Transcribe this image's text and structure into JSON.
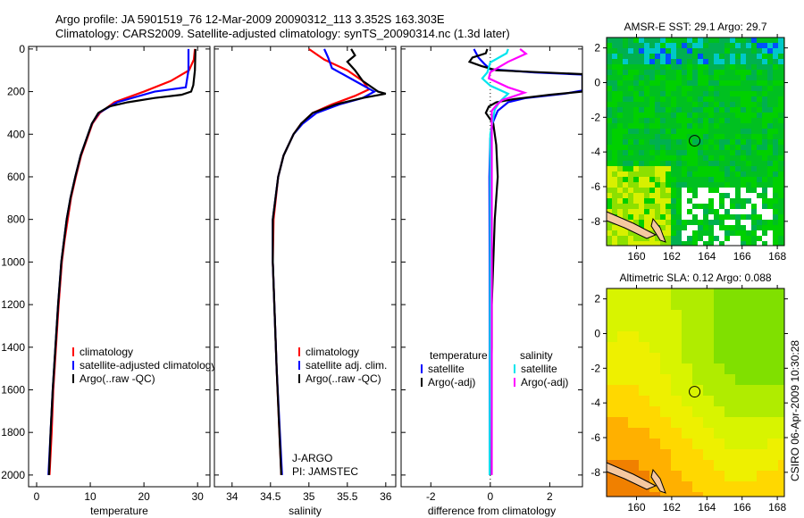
{
  "title_line1": "Argo profile: JA 5901519_76 12-Mar-2009 20090312_113 3.352S 163.303E",
  "title_line2": "Climatology: CARS2009. Satellite-adjusted climatology: synTS_20090314.nc (1.3d later)",
  "credit": "CSIRO 06-Apr-2009 10:30:28",
  "float_info": [
    "J-ARGO",
    "PI: JAMSTEC"
  ],
  "colors": {
    "climatology": "#ff0000",
    "satellite": "#0000ff",
    "argo": "#000000",
    "sal_satellite": "#00e5ee",
    "sal_argo": "#ff00ff"
  },
  "chart_data": [
    {
      "type": "line",
      "id": "temperature",
      "xlabel": "temperature",
      "ylabel": "",
      "xlim": [
        -1.5,
        32.3
      ],
      "ylim": [
        2055,
        -12
      ],
      "xticks": [
        0,
        10,
        20,
        30
      ],
      "yticks": [
        0,
        200,
        400,
        600,
        800,
        1000,
        1200,
        1400,
        1600,
        1800,
        2000
      ],
      "legend": [
        "climatology",
        "satellite-adjusted climatology",
        "Argo(..raw -QC)"
      ],
      "series": [
        {
          "name": "climatology",
          "color": "#ff0000",
          "points": [
            [
              0,
              29.5
            ],
            [
              50,
              29.3
            ],
            [
              100,
              28.4
            ],
            [
              150,
              25
            ],
            [
              200,
              20
            ],
            [
              250,
              14.5
            ],
            [
              300,
              11.8
            ],
            [
              350,
              10.4
            ],
            [
              400,
              9.7
            ],
            [
              500,
              8.3
            ],
            [
              600,
              7.3
            ],
            [
              700,
              6.4
            ],
            [
              800,
              5.8
            ],
            [
              900,
              5.2
            ],
            [
              1000,
              4.7
            ],
            [
              1200,
              4.1
            ],
            [
              1400,
              3.6
            ],
            [
              1600,
              3.1
            ],
            [
              1800,
              2.8
            ],
            [
              2000,
              2.4
            ]
          ]
        },
        {
          "name": "satellite-adjusted climatology",
          "color": "#0000ff",
          "points": [
            [
              0,
              28.3
            ],
            [
              100,
              28.3
            ],
            [
              180,
              27.8
            ],
            [
              200,
              22
            ],
            [
              250,
              15
            ],
            [
              300,
              11.6
            ],
            [
              350,
              10.3
            ],
            [
              400,
              9.6
            ],
            [
              500,
              8.2
            ],
            [
              600,
              7.2
            ],
            [
              700,
              6.3
            ],
            [
              800,
              5.6
            ],
            [
              900,
              5.1
            ],
            [
              1000,
              4.6
            ],
            [
              1200,
              4.0
            ],
            [
              1400,
              3.5
            ],
            [
              1600,
              3.0
            ],
            [
              1800,
              2.6
            ],
            [
              2000,
              2.2
            ]
          ]
        },
        {
          "name": "Argo(..raw -QC)",
          "color": "#000000",
          "points": [
            [
              0,
              29.6
            ],
            [
              100,
              29.5
            ],
            [
              170,
              29.2
            ],
            [
              200,
              28.8
            ],
            [
              215,
              27
            ],
            [
              230,
              22
            ],
            [
              250,
              17
            ],
            [
              270,
              13.5
            ],
            [
              300,
              11.5
            ],
            [
              350,
              10.3
            ],
            [
              400,
              9.6
            ],
            [
              500,
              8.2
            ],
            [
              600,
              7.2
            ],
            [
              700,
              6.3
            ],
            [
              800,
              5.6
            ],
            [
              900,
              5.1
            ],
            [
              1000,
              4.6
            ],
            [
              1200,
              4.0
            ],
            [
              1400,
              3.5
            ],
            [
              1600,
              3.0
            ],
            [
              1800,
              2.6
            ],
            [
              2000,
              2.3
            ]
          ]
        }
      ]
    },
    {
      "type": "line",
      "id": "salinity",
      "xlabel": "salinity",
      "xlim": [
        33.77,
        36.13
      ],
      "ylim": [
        2055,
        -12
      ],
      "xticks": [
        34,
        34.5,
        35,
        35.5,
        36
      ],
      "legend": [
        "climatology",
        "satellite adj. clim.",
        "Argo(..raw -QC)"
      ],
      "series": [
        {
          "name": "climatology",
          "color": "#ff0000",
          "points": [
            [
              0,
              35.0
            ],
            [
              50,
              35.2
            ],
            [
              100,
              35.5
            ],
            [
              150,
              35.7
            ],
            [
              190,
              35.78
            ],
            [
              220,
              35.6
            ],
            [
              260,
              35.3
            ],
            [
              300,
              35.05
            ],
            [
              350,
              34.9
            ],
            [
              400,
              34.8
            ],
            [
              500,
              34.67
            ],
            [
              600,
              34.6
            ],
            [
              800,
              34.54
            ],
            [
              1000,
              34.53
            ],
            [
              1200,
              34.55
            ],
            [
              1500,
              34.58
            ],
            [
              2000,
              34.64
            ]
          ]
        },
        {
          "name": "satellite adj. clim.",
          "color": "#0000ff",
          "points": [
            [
              0,
              35.2
            ],
            [
              40,
              35.25
            ],
            [
              90,
              35.3
            ],
            [
              150,
              35.6
            ],
            [
              200,
              35.85
            ],
            [
              230,
              35.7
            ],
            [
              260,
              35.4
            ],
            [
              300,
              35.1
            ],
            [
              350,
              34.92
            ],
            [
              400,
              34.8
            ],
            [
              500,
              34.67
            ],
            [
              600,
              34.6
            ],
            [
              800,
              34.53
            ],
            [
              1000,
              34.53
            ],
            [
              1200,
              34.55
            ],
            [
              1500,
              34.58
            ],
            [
              2000,
              34.65
            ]
          ]
        },
        {
          "name": "Argo(..raw -QC)",
          "color": "#000000",
          "points": [
            [
              0,
              35.55
            ],
            [
              30,
              35.6
            ],
            [
              60,
              35.5
            ],
            [
              100,
              35.6
            ],
            [
              150,
              35.7
            ],
            [
              200,
              35.9
            ],
            [
              210,
              36.0
            ],
            [
              230,
              35.7
            ],
            [
              260,
              35.35
            ],
            [
              300,
              35.05
            ],
            [
              350,
              34.9
            ],
            [
              400,
              34.8
            ],
            [
              500,
              34.67
            ],
            [
              600,
              34.6
            ],
            [
              800,
              34.53
            ],
            [
              1000,
              34.53
            ],
            [
              1200,
              34.55
            ],
            [
              1500,
              34.58
            ],
            [
              2000,
              34.64
            ]
          ]
        }
      ]
    },
    {
      "type": "line",
      "id": "difference",
      "xlabel": "difference from climatology",
      "xlim": [
        -3.0,
        3.1
      ],
      "ylim": [
        2055,
        -12
      ],
      "xticks": [
        -2,
        0,
        2
      ],
      "legend_groups": [
        {
          "heading": "temperature",
          "items": [
            "satellite",
            "Argo(-adj)"
          ]
        },
        {
          "heading": "salinity",
          "items": [
            "satellite",
            "Argo(-adj)"
          ]
        }
      ],
      "series": [
        {
          "name": "temperature satellite",
          "color": "#0000ff",
          "points": [
            [
              0,
              -0.55
            ],
            [
              40,
              -0.4
            ],
            [
              70,
              -0.2
            ],
            [
              95,
              0
            ],
            [
              110,
              1.5
            ],
            [
              120,
              3.1
            ],
            [
              195,
              3.1
            ],
            [
              210,
              2.5
            ],
            [
              230,
              1.2
            ],
            [
              250,
              0.6
            ],
            [
              290,
              0.25
            ],
            [
              340,
              0.1
            ],
            [
              420,
              0
            ],
            [
              600,
              -0.03
            ],
            [
              1000,
              -0.02
            ],
            [
              2000,
              -0.02
            ]
          ]
        },
        {
          "name": "temperature Argo(-adj)",
          "color": "#000000",
          "points": [
            [
              0,
              -0.1
            ],
            [
              20,
              -0.15
            ],
            [
              40,
              -0.6
            ],
            [
              60,
              -0.7
            ],
            [
              80,
              -0.3
            ],
            [
              100,
              0.2
            ],
            [
              118,
              3.1
            ],
            [
              200,
              3.1
            ],
            [
              215,
              2.0
            ],
            [
              235,
              0.8
            ],
            [
              250,
              0.2
            ],
            [
              270,
              -0.05
            ],
            [
              300,
              -0.15
            ],
            [
              350,
              0.1
            ],
            [
              450,
              0.2
            ],
            [
              600,
              0.25
            ],
            [
              800,
              0.15
            ],
            [
              1000,
              0.1
            ],
            [
              1200,
              0.05
            ],
            [
              1400,
              0.05
            ],
            [
              2000,
              0
            ]
          ]
        },
        {
          "name": "salinity satellite",
          "color": "#00e5ee",
          "points": [
            [
              0,
              0.6
            ],
            [
              20,
              0.55
            ],
            [
              63,
              0
            ],
            [
              110,
              -0.1
            ],
            [
              138,
              -0.27
            ],
            [
              172,
              0
            ],
            [
              210,
              0.6
            ],
            [
              250,
              0.3
            ],
            [
              285,
              0.15
            ],
            [
              400,
              0
            ],
            [
              1000,
              0
            ],
            [
              2000,
              -0.02
            ]
          ]
        },
        {
          "name": "salinity Argo(-adj)",
          "color": "#ff00ff",
          "points": [
            [
              0,
              1.0
            ],
            [
              22,
              1.2
            ],
            [
              60,
              0.6
            ],
            [
              109,
              0
            ],
            [
              138,
              -0.05
            ],
            [
              180,
              0.6
            ],
            [
              205,
              1.15
            ],
            [
              240,
              0.4
            ],
            [
              265,
              0.2
            ],
            [
              290,
              0.05
            ],
            [
              500,
              0.05
            ],
            [
              1000,
              0.05
            ],
            [
              2000,
              0.05
            ]
          ]
        }
      ]
    },
    {
      "type": "heatmap",
      "id": "sst_map",
      "title": "AMSR-E SST: 29.1 Argo: 29.7",
      "xlim": [
        158.3,
        168.4
      ],
      "ylim": [
        -9.4,
        2.6
      ],
      "xticks": [
        160,
        162,
        164,
        166,
        168
      ],
      "yticks": [
        2,
        0,
        -2,
        -4,
        -6,
        -8
      ],
      "argo_position": [
        163.303,
        -3.352
      ]
    },
    {
      "type": "heatmap",
      "id": "sla_map",
      "title": "Altimetric SLA: 0.12 Argo: 0.088",
      "xlim": [
        158.3,
        168.4
      ],
      "ylim": [
        -9.4,
        2.6
      ],
      "xticks": [
        160,
        162,
        164,
        166,
        168
      ],
      "yticks": [
        2,
        0,
        -2,
        -4,
        -6,
        -8
      ],
      "argo_position": [
        163.303,
        -3.352
      ]
    }
  ]
}
